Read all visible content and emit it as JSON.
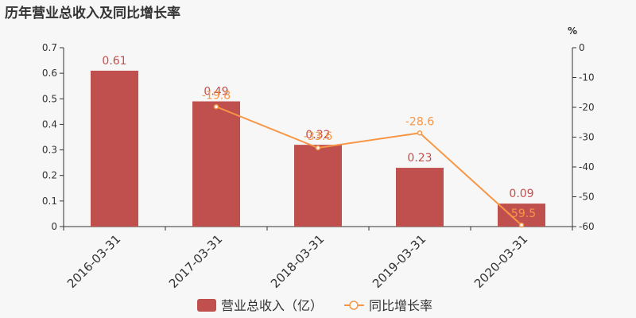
{
  "chart_data": {
    "type": "bar+line",
    "title": "历年营业总收入及同比增长率",
    "categories": [
      "2016-03-31",
      "2017-03-31",
      "2018-03-31",
      "2019-03-31",
      "2020-03-31"
    ],
    "series": [
      {
        "name": "营业总收入（亿）",
        "type": "bar",
        "axis": "left",
        "values": [
          0.61,
          0.49,
          0.32,
          0.23,
          0.09
        ],
        "labels": [
          "0.61",
          "0.49",
          "0.32",
          "0.23",
          "0.09"
        ],
        "color": "#c0504d"
      },
      {
        "name": "同比增长率",
        "type": "line",
        "axis": "right",
        "values": [
          null,
          -19.8,
          -33.6,
          -28.6,
          -59.5
        ],
        "labels": [
          "",
          "-19.8",
          "-33.6",
          "-28.6",
          "-59.5"
        ],
        "color": "#f79646"
      }
    ],
    "y_left": {
      "min": 0,
      "max": 0.7,
      "ticks": [
        "0",
        "0.1",
        "0.2",
        "0.3",
        "0.4",
        "0.5",
        "0.6",
        "0.7"
      ]
    },
    "y_right": {
      "min": -60,
      "max": 0,
      "unit": "%",
      "ticks": [
        "0",
        "-10",
        "-20",
        "-30",
        "-40",
        "-50",
        "-60"
      ]
    },
    "legend_position": "bottom-center",
    "grid": false
  }
}
